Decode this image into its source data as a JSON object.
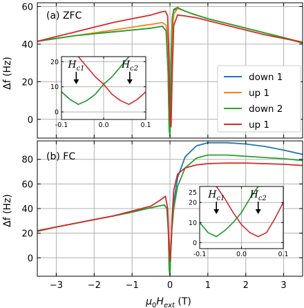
{
  "colors": {
    "down1": "#1f77b4",
    "up1_orange": "#ff7f0e",
    "down2": "#2ca02c",
    "up1_red": "#d62728",
    "grid": "#b0b0b0"
  },
  "chart_data": [
    {
      "type": "line",
      "panel_label": "(a) ZFC",
      "xlabel": "",
      "ylabel": "Δf (Hz)",
      "xlim": [
        -3.5,
        3.5
      ],
      "ylim": [
        -10,
        62
      ],
      "yticks": [
        0,
        20,
        40,
        60
      ],
      "xticks": [
        -3,
        -2,
        -1,
        0,
        1,
        2,
        3
      ],
      "show_x_ticklabels": false,
      "grid": true,
      "legend": {
        "placement": "right",
        "entries": [
          "down 1",
          "up 1",
          "down 2",
          "up 1"
        ]
      },
      "series": [
        {
          "name": "down 1",
          "color_key": "down1",
          "x": [
            3.5,
            3.0,
            2.5,
            2.0,
            1.5,
            1.0,
            0.6,
            0.35,
            0.2,
            0.1,
            0.06,
            0.03,
            0.0,
            -0.02,
            -0.05,
            -0.1,
            -0.2,
            -0.5,
            -1.0,
            -1.5,
            -2.0,
            -2.5,
            -3.0,
            -3.5
          ],
          "y": [
            40.5,
            43.5,
            46,
            48.5,
            51,
            53.5,
            56,
            58,
            59,
            58,
            54,
            30,
            -8,
            -5,
            25,
            47,
            49.5,
            48.5,
            47.5,
            46.5,
            45.5,
            44.5,
            43,
            41.5
          ]
        },
        {
          "name": "up 1",
          "color_key": "up1_orange",
          "x": [
            -3.5,
            -3.0,
            -2.5,
            -2.0,
            -1.5,
            -1.0,
            -0.5,
            -0.2,
            -0.1,
            -0.05,
            -0.02,
            0.0,
            0.03,
            0.06,
            0.1,
            0.2,
            0.4,
            0.7,
            1.0,
            1.5,
            2.0,
            2.5,
            3.0,
            3.5
          ],
          "y": [
            41.5,
            43,
            44.5,
            46,
            47.5,
            49,
            50.5,
            51.5,
            50,
            40,
            10,
            -8,
            15,
            45,
            56,
            59,
            57.5,
            55.5,
            53.5,
            51,
            48.5,
            46,
            43.5,
            41
          ]
        },
        {
          "name": "down 2",
          "color_key": "down2",
          "x": [
            3.5,
            3.0,
            2.5,
            2.0,
            1.5,
            1.0,
            0.6,
            0.35,
            0.2,
            0.1,
            0.06,
            0.03,
            0.0,
            -0.02,
            -0.05,
            -0.1,
            -0.2,
            -0.5,
            -1.0,
            -1.5,
            -2.0,
            -2.5,
            -3.0,
            -3.5
          ],
          "y": [
            40.5,
            43.5,
            46,
            48.5,
            51,
            53.5,
            56,
            58,
            59.5,
            58.5,
            54,
            30,
            -9,
            -6,
            25,
            47,
            49.5,
            48.5,
            47.5,
            46.5,
            45.5,
            44.5,
            43,
            41.5
          ]
        },
        {
          "name": "up 1",
          "color_key": "up1_red",
          "x": [
            -3.5,
            -3.0,
            -2.5,
            -2.0,
            -1.5,
            -1.0,
            -0.5,
            -0.25,
            -0.12,
            -0.06,
            -0.03,
            0.0,
            0.03,
            0.06,
            0.1,
            0.2,
            0.4,
            0.7,
            1.0,
            1.5,
            2.0,
            2.5,
            3.0,
            3.5
          ],
          "y": [
            41.5,
            44,
            46.5,
            49,
            51.5,
            53.5,
            55.5,
            57,
            57.5,
            55,
            35,
            0,
            -4,
            25,
            50,
            55.5,
            55,
            54,
            52.5,
            50,
            47.5,
            45,
            43,
            41
          ]
        }
      ]
    },
    {
      "type": "line",
      "inset_of": "(a) ZFC",
      "xlim": [
        -0.1,
        0.1
      ],
      "ylim": [
        -3,
        22
      ],
      "xticks": [
        -0.1,
        0.0,
        0.1
      ],
      "xtick_labels": [
        "-0.1",
        "0.0",
        "0.1"
      ],
      "yticks": [
        0,
        10,
        20
      ],
      "grid": true,
      "annotations": [
        {
          "text": "Hc1",
          "base": "H",
          "sub": "c1",
          "x": -0.065
        },
        {
          "text": "Hc2",
          "base": "H",
          "sub": "c2",
          "x": 0.062
        }
      ],
      "series": [
        {
          "name": "down 1",
          "color_key": "down1",
          "x": [
            0.06,
            0.04,
            0.02,
            0.0,
            -0.02,
            -0.04,
            -0.06,
            -0.08,
            -0.1
          ],
          "y": [
            22,
            18,
            14,
            11,
            7,
            4.5,
            3,
            5,
            8
          ]
        },
        {
          "name": "down 2",
          "color_key": "down2",
          "x": [
            0.06,
            0.04,
            0.02,
            0.0,
            -0.02,
            -0.04,
            -0.06,
            -0.08,
            -0.1
          ],
          "y": [
            22,
            18,
            14,
            11,
            7,
            4.5,
            3,
            5,
            8
          ]
        },
        {
          "name": "up 1",
          "color_key": "up1_red",
          "x": [
            -0.06,
            -0.04,
            -0.02,
            0.0,
            0.02,
            0.04,
            0.06,
            0.08,
            0.1
          ],
          "y": [
            22,
            18,
            14,
            11,
            7,
            4.5,
            3,
            5,
            8
          ]
        }
      ]
    },
    {
      "type": "line",
      "panel_label": "(b) FC",
      "xlabel": "μ0Hext (T)",
      "ylabel": "Δf (Hz)",
      "xlim": [
        -3.5,
        3.5
      ],
      "ylim": [
        -15,
        95
      ],
      "yticks": [
        0,
        20,
        40,
        60,
        80
      ],
      "xticks": [
        -3,
        -2,
        -1,
        0,
        1,
        2,
        3
      ],
      "xtick_labels": [
        "−3",
        "−2",
        "−1",
        "0",
        "1",
        "2",
        "3"
      ],
      "grid": true,
      "series": [
        {
          "name": "down 1",
          "color_key": "down1",
          "x": [
            3.5,
            3.0,
            2.5,
            2.0,
            1.5,
            1.0,
            0.7,
            0.4,
            0.2,
            0.1,
            0.05,
            0.02,
            0.0,
            -0.02,
            -0.04,
            -0.08,
            -0.15,
            -0.3,
            -0.6,
            -1.0,
            -1.5,
            -2.0,
            -2.5,
            -3.0,
            -3.5
          ],
          "y": [
            84,
            87.5,
            90.5,
            92.5,
            93.5,
            93.5,
            91,
            82,
            65,
            45,
            25,
            5,
            -14,
            -10,
            20,
            40,
            43,
            42,
            40,
            37,
            34,
            31,
            28,
            25,
            21.5
          ]
        },
        {
          "name": "down 2",
          "color_key": "down2",
          "x": [
            3.5,
            3.0,
            2.5,
            2.0,
            1.5,
            1.0,
            0.7,
            0.4,
            0.2,
            0.1,
            0.05,
            0.02,
            0.0,
            -0.02,
            -0.04,
            -0.08,
            -0.15,
            -0.3,
            -0.6,
            -1.0,
            -1.5,
            -2.0,
            -2.5,
            -3.0,
            -3.5
          ],
          "y": [
            79,
            80.5,
            81.5,
            82.5,
            83.5,
            83.5,
            81,
            73,
            58,
            40,
            22,
            3,
            -14,
            -10,
            20,
            40,
            43,
            42,
            40,
            37,
            34,
            31,
            28,
            25,
            21.5
          ]
        },
        {
          "name": "up 1",
          "color_key": "up1_red",
          "x": [
            -3.5,
            -3.0,
            -2.5,
            -2.0,
            -1.5,
            -1.0,
            -0.5,
            -0.25,
            -0.12,
            -0.06,
            -0.03,
            0.0,
            0.03,
            0.06,
            0.1,
            0.2,
            0.4,
            0.7,
            1.0,
            1.5,
            2.0,
            2.5,
            3.0,
            3.5
          ],
          "y": [
            22,
            25,
            28,
            31,
            34,
            38,
            42,
            47,
            50,
            40,
            15,
            -3,
            10,
            35,
            55,
            68,
            73,
            75.5,
            76.5,
            77,
            77,
            76.5,
            76,
            75
          ]
        }
      ]
    },
    {
      "type": "line",
      "inset_of": "(b) FC",
      "xlim": [
        -0.1,
        0.1
      ],
      "ylim": [
        -3,
        28
      ],
      "xticks": [
        -0.1,
        0.0,
        0.1
      ],
      "xtick_labels": [
        "-0.1",
        "0.0",
        "0.1"
      ],
      "yticks": [
        0,
        10,
        20
      ],
      "yticks_extra_label": "25",
      "grid": true,
      "annotations": [
        {
          "text": "Hc1",
          "base": "H",
          "sub": "c1",
          "x": -0.06
        },
        {
          "text": "Hc2",
          "base": "H",
          "sub": "c2",
          "x": 0.04
        }
      ],
      "series": [
        {
          "name": "down 1",
          "color_key": "down1",
          "x": [
            0.04,
            0.02,
            0.0,
            -0.02,
            -0.04,
            -0.06,
            -0.08,
            -0.1
          ],
          "y": [
            28,
            22,
            15,
            10,
            6,
            3,
            5,
            10
          ]
        },
        {
          "name": "down 2",
          "color_key": "down2",
          "x": [
            0.04,
            0.02,
            0.0,
            -0.02,
            -0.04,
            -0.06,
            -0.08,
            -0.1
          ],
          "y": [
            28,
            22,
            15,
            10,
            6,
            3,
            5,
            10
          ]
        },
        {
          "name": "up 1",
          "color_key": "up1_red",
          "x": [
            -0.06,
            -0.04,
            -0.02,
            0.0,
            0.02,
            0.04,
            0.06,
            0.08,
            0.1
          ],
          "y": [
            28,
            22,
            15,
            9,
            5,
            3,
            5,
            12,
            20
          ]
        }
      ]
    }
  ]
}
